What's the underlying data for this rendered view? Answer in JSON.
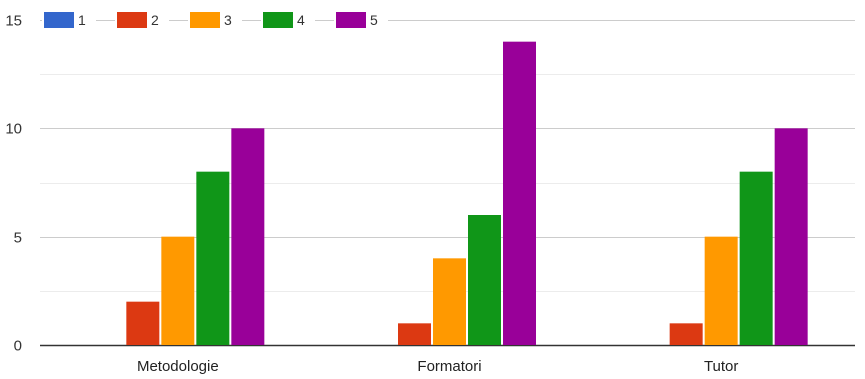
{
  "chart_data": {
    "type": "bar",
    "categories": [
      "Metodologie",
      "Formatori",
      "Tutor"
    ],
    "series": [
      {
        "name": "1",
        "color": "#3366cc",
        "values": [
          0,
          0,
          0
        ]
      },
      {
        "name": "2",
        "color": "#dc3912",
        "values": [
          2,
          1,
          1
        ]
      },
      {
        "name": "3",
        "color": "#ff9900",
        "values": [
          5,
          4,
          5
        ]
      },
      {
        "name": "4",
        "color": "#109618",
        "values": [
          8,
          6,
          8
        ]
      },
      {
        "name": "5",
        "color": "#990099",
        "values": [
          10,
          14,
          10
        ]
      }
    ],
    "ylim": [
      0,
      15
    ],
    "yticks": [
      "0",
      "5",
      "10",
      "15"
    ],
    "minor_gridlines": [
      2.5,
      7.5,
      12.5
    ],
    "grid": true,
    "legend_position": "top-left",
    "title": "",
    "xlabel": "",
    "ylabel": ""
  }
}
